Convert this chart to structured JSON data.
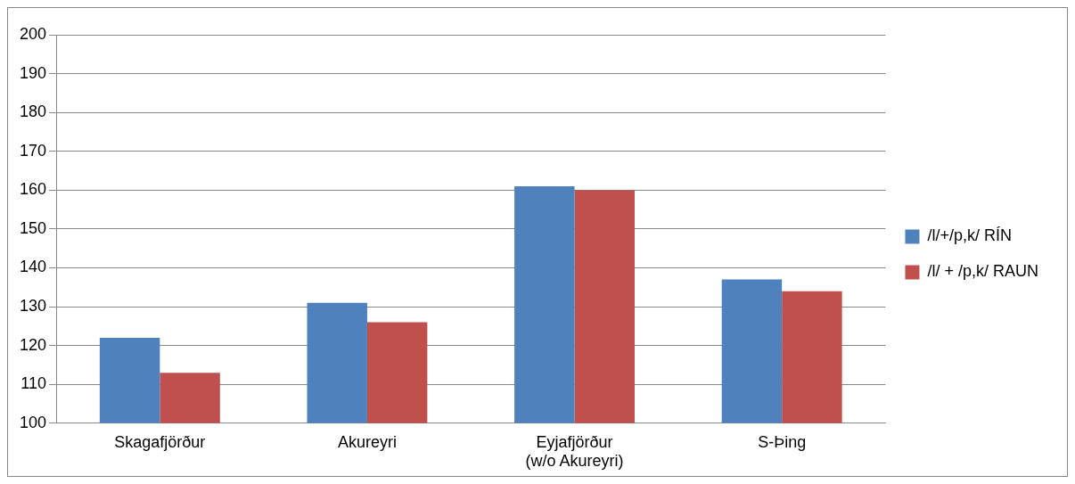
{
  "chart_data": {
    "type": "bar",
    "categories": [
      "Skagafjörður",
      "Akureyri",
      "Eyjafjörður\n(w/o Akureyri)",
      "S-Þing"
    ],
    "series": [
      {
        "name": "/l/+/p,k/ RÍN",
        "color": "#4f81bd",
        "values": [
          122,
          131,
          161,
          137
        ]
      },
      {
        "name": "/l/ + /p,k/ RAUN",
        "color": "#c0504d",
        "values": [
          113,
          126,
          160,
          134
        ]
      }
    ],
    "ylim": [
      100,
      200
    ],
    "yticks": [
      100,
      110,
      120,
      130,
      140,
      150,
      160,
      170,
      180,
      190,
      200
    ],
    "grid": "y",
    "legend": "right"
  }
}
